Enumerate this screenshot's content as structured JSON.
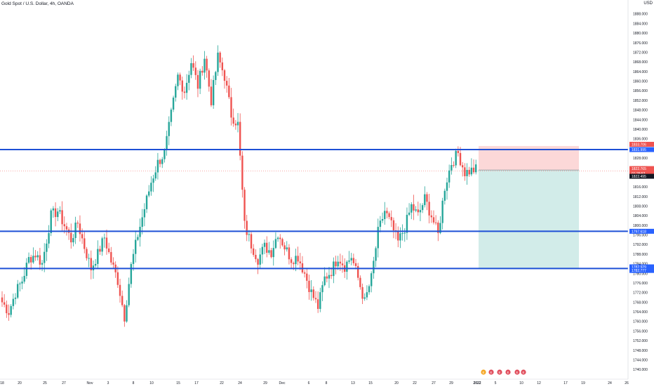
{
  "symbol_title": "Gold Spot / U.S. Dollar, 4h, OANDA",
  "corner_label": "USD",
  "colors": {
    "up": "#26a69a",
    "down": "#ef5350",
    "hline": "#1e50d6",
    "stop_zone": "#fcd8d8",
    "target_zone": "#d2ece9",
    "price_label_red": "#ef5350",
    "price_label_blue": "#2962ff",
    "price_label_dark": "#131722"
  },
  "chart_data": {
    "type": "candlestick",
    "ylim": [
      1738,
      1892
    ],
    "y_ticks": [
      "1888.000",
      "1884.000",
      "1880.000",
      "1876.000",
      "1872.000",
      "1868.000",
      "1864.000",
      "1860.000",
      "1856.000",
      "1852.000",
      "1848.000",
      "1844.000",
      "1840.000",
      "1836.000",
      "1832.000",
      "1828.000",
      "1824.000",
      "1820.000",
      "1816.000",
      "1812.000",
      "1808.000",
      "1804.000",
      "1800.000",
      "1796.000",
      "1792.000",
      "1788.000",
      "1784.000",
      "1780.000",
      "1776.000",
      "1772.000",
      "1768.000",
      "1764.000",
      "1760.000",
      "1756.000",
      "1752.000",
      "1748.000",
      "1744.000",
      "1740.000"
    ],
    "x_ticks": [
      "18",
      "20",
      "25",
      "27",
      "Nov",
      "3",
      "8",
      "10",
      "15",
      "17",
      "22",
      "24",
      "29",
      "Dec",
      "6",
      "8",
      "13",
      "15",
      "20",
      "22",
      "27",
      "29",
      "2022",
      "5",
      "10",
      "12",
      "17",
      "19",
      "24",
      "26"
    ],
    "horizontal_levels": [
      1831.5,
      1797.5,
      1782.0
    ],
    "position": {
      "type": "short",
      "entry": 1823,
      "stop": 1833,
      "target": 1782
    },
    "price_labels": [
      {
        "text": "1833.706",
        "color": "red"
      },
      {
        "text": "1831.995",
        "color": "blue"
      },
      {
        "text": "1822.765",
        "color": "red"
      },
      {
        "text": "01:29:52",
        "color": "red"
      },
      {
        "text": "1822.495",
        "color": "dark"
      },
      {
        "text": "1797.618",
        "color": "blue"
      },
      {
        "text": "1782.929",
        "color": "blue"
      },
      {
        "text": "1782.777",
        "color": "blue"
      }
    ],
    "anchors": [
      [
        0,
        1768
      ],
      [
        3,
        1764
      ],
      [
        6,
        1772
      ],
      [
        9,
        1777
      ],
      [
        12,
        1786
      ],
      [
        15,
        1788
      ],
      [
        18,
        1784
      ],
      [
        22,
        1804
      ],
      [
        25,
        1806
      ],
      [
        28,
        1800
      ],
      [
        31,
        1794
      ],
      [
        34,
        1801
      ],
      [
        37,
        1791
      ],
      [
        40,
        1782
      ],
      [
        43,
        1788
      ],
      [
        46,
        1795
      ],
      [
        49,
        1785
      ],
      [
        52,
        1777
      ],
      [
        55,
        1762
      ],
      [
        58,
        1783
      ],
      [
        61,
        1796
      ],
      [
        64,
        1807
      ],
      [
        67,
        1818
      ],
      [
        70,
        1826
      ],
      [
        73,
        1830
      ],
      [
        76,
        1846
      ],
      [
        79,
        1862
      ],
      [
        82,
        1856
      ],
      [
        85,
        1868
      ],
      [
        88,
        1858
      ],
      [
        91,
        1870
      ],
      [
        94,
        1852
      ],
      [
        97,
        1870
      ],
      [
        100,
        1862
      ],
      [
        103,
        1846
      ],
      [
        106,
        1842
      ],
      [
        109,
        1800
      ],
      [
        112,
        1792
      ],
      [
        115,
        1786
      ],
      [
        118,
        1791
      ],
      [
        121,
        1789
      ],
      [
        124,
        1797
      ],
      [
        127,
        1791
      ],
      [
        130,
        1786
      ],
      [
        133,
        1787
      ],
      [
        136,
        1780
      ],
      [
        139,
        1772
      ],
      [
        142,
        1766
      ],
      [
        145,
        1778
      ],
      [
        148,
        1781
      ],
      [
        151,
        1787
      ],
      [
        154,
        1783
      ],
      [
        157,
        1787
      ],
      [
        160,
        1778
      ],
      [
        163,
        1768
      ],
      [
        166,
        1778
      ],
      [
        169,
        1797
      ],
      [
        172,
        1806
      ],
      [
        175,
        1800
      ],
      [
        178,
        1793
      ],
      [
        181,
        1799
      ],
      [
        184,
        1808
      ],
      [
        187,
        1804
      ],
      [
        190,
        1811
      ],
      [
        193,
        1804
      ],
      [
        196,
        1796
      ],
      [
        199,
        1816
      ],
      [
        202,
        1826
      ],
      [
        205,
        1830
      ],
      [
        208,
        1822
      ]
    ],
    "x_date_labels_note": ""
  },
  "bottom_icons": [
    "E",
    "E",
    "E",
    "E",
    "E",
    "E"
  ]
}
